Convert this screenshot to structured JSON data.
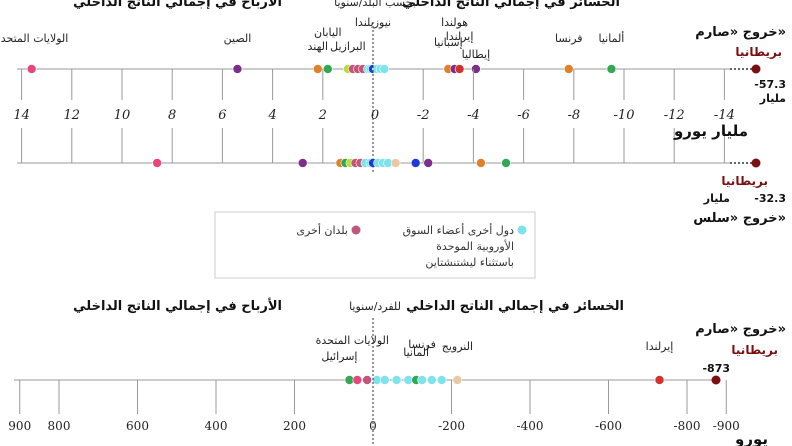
{
  "colors": {
    "axis": "#999999",
    "uk": "#7a1010",
    "eu": "#7fe3ec",
    "other": "#c2557a"
  },
  "chart_data": [
    {
      "type": "scatter",
      "panel": "top",
      "header_losses": "الخسائر في إجمالي الناتج الداخلي",
      "header_gains": "الأرباح في إجمالي الناتج الداخلي",
      "header_mid": "بحسب البلد/سنويا",
      "unit": "مليار يورو",
      "x_ticks": [
        14,
        12,
        10,
        8,
        6,
        4,
        2,
        0,
        -2,
        -4,
        -6,
        -8,
        -10,
        -12,
        -14
      ],
      "x_tick_labels": [
        "14",
        "12",
        "10",
        "8",
        "6",
        "4",
        "2",
        "0",
        "-2",
        "-4",
        "-6",
        "-8",
        "-10",
        "-12",
        "-14"
      ],
      "xlim": [
        14.5,
        -14.5
      ],
      "rows": [
        {
          "scenario": "خروج «صارم»",
          "uk_label": "بريطانيا",
          "uk_value_label": "-57.3",
          "uk_value_unit": "مليار",
          "points": [
            {
              "x": 13.6,
              "color": "#e8457a",
              "label": "الولايات المتحدة"
            },
            {
              "x": 5.4,
              "color": "#7b2f8a",
              "label": "الصين"
            },
            {
              "x": 2.2,
              "color": "#e0802a",
              "label": "الهند"
            },
            {
              "x": 1.8,
              "color": "#31a851",
              "label": "اليابان"
            },
            {
              "x": 1.0,
              "color": "#b7de3a",
              "label": "البرازيل"
            },
            {
              "x": 0.8,
              "color": "#c2557a"
            },
            {
              "x": 0.6,
              "color": "#c2557a"
            },
            {
              "x": 0.4,
              "color": "#c2557a"
            },
            {
              "x": 0.2,
              "color": "#7fe3ec"
            },
            {
              "x": 0.1,
              "color": "#7fe3ec"
            },
            {
              "x": 0.0,
              "color": "#1e3ad8",
              "label": "نيوزيلندا"
            },
            {
              "x": -0.15,
              "color": "#7fe3ec"
            },
            {
              "x": -0.3,
              "color": "#7fe3ec"
            },
            {
              "x": -0.45,
              "color": "#7fe3ec"
            },
            {
              "x": -3.0,
              "color": "#e0802a",
              "label": "إسبانيا"
            },
            {
              "x": -3.25,
              "color": "#7b2f8a",
              "label": "هولندا"
            },
            {
              "x": -3.45,
              "color": "#d33030",
              "label": "إيرلندا"
            },
            {
              "x": -4.1,
              "color": "#7b2f8a",
              "label": "إيطاليا"
            },
            {
              "x": -7.8,
              "color": "#e0802a",
              "label": "فرنسا"
            },
            {
              "x": -9.5,
              "color": "#31a851",
              "label": "ألمانيا"
            }
          ]
        },
        {
          "scenario": "خروج «سلس»",
          "uk_label": "بريطانيا",
          "uk_value_label": "-32.3",
          "uk_value_unit": "مليار",
          "points": [
            {
              "x": 8.6,
              "color": "#e8457a"
            },
            {
              "x": 2.8,
              "color": "#7b2f8a"
            },
            {
              "x": 1.3,
              "color": "#e0802a"
            },
            {
              "x": 1.1,
              "color": "#31a851"
            },
            {
              "x": 0.9,
              "color": "#b7de3a"
            },
            {
              "x": 0.7,
              "color": "#c2557a"
            },
            {
              "x": 0.5,
              "color": "#c2557a"
            },
            {
              "x": 0.3,
              "color": "#7fe3ec"
            },
            {
              "x": 0.1,
              "color": "#7fe3ec"
            },
            {
              "x": 0.0,
              "color": "#1e3ad8"
            },
            {
              "x": -0.2,
              "color": "#7fe3ec"
            },
            {
              "x": -0.4,
              "color": "#7fe3ec"
            },
            {
              "x": -0.6,
              "color": "#7fe3ec"
            },
            {
              "x": -0.9,
              "color": "#e8c9a6"
            },
            {
              "x": -1.7,
              "color": "#1e3ad8"
            },
            {
              "x": -2.2,
              "color": "#7b2f8a"
            },
            {
              "x": -4.3,
              "color": "#e0802a"
            },
            {
              "x": -5.3,
              "color": "#31a851"
            }
          ]
        }
      ],
      "legend": {
        "other_label": "بلدان أخرى",
        "eu_label_line1": "دول أخرى أعضاء السوق",
        "eu_label_line2": "الأوروبية الموحدة",
        "eu_label_line3": "باستثناء ليشتنشتاين"
      }
    },
    {
      "type": "scatter",
      "panel": "bottom",
      "header_losses": "الخسائر في إجمالي الناتج الداخلي",
      "header_gains": "الأرباح في إجمالي الناتج الداخلي",
      "header_mid": "للفرد/سنويا",
      "unit": "يورو",
      "x_ticks": [
        900,
        800,
        600,
        400,
        200,
        0,
        -200,
        -400,
        -600,
        -800,
        -900
      ],
      "x_tick_labels": [
        "900",
        "800",
        "600",
        "400",
        "200",
        "0",
        "-200",
        "-400",
        "-600",
        "-800",
        "-900"
      ],
      "xlim": [
        930,
        -930
      ],
      "rows": [
        {
          "scenario": "خروج «صارم»",
          "uk_label": "بريطانيا",
          "uk_value_label": "-873",
          "points": [
            {
              "x": 60,
              "color": "#31a851",
              "label": "إسرائيل"
            },
            {
              "x": 40,
              "color": "#e8457a",
              "label": "الولايات المتحدة"
            },
            {
              "x": 15,
              "color": "#c2557a"
            },
            {
              "x": -10,
              "color": "#7fe3ec"
            },
            {
              "x": -30,
              "color": "#7fe3ec"
            },
            {
              "x": -60,
              "color": "#7fe3ec"
            },
            {
              "x": -90,
              "color": "#7fe3ec"
            },
            {
              "x": -110,
              "color": "#31a851",
              "label": "ألمانيا"
            },
            {
              "x": -125,
              "color": "#7fe3ec",
              "label": "فرنسا"
            },
            {
              "x": -150,
              "color": "#7fe3ec"
            },
            {
              "x": -175,
              "color": "#7fe3ec"
            },
            {
              "x": -215,
              "color": "#e8c9a6",
              "label": "النرويج"
            },
            {
              "x": -730,
              "color": "#d33030",
              "label": "إيرلندا"
            }
          ]
        }
      ]
    }
  ]
}
